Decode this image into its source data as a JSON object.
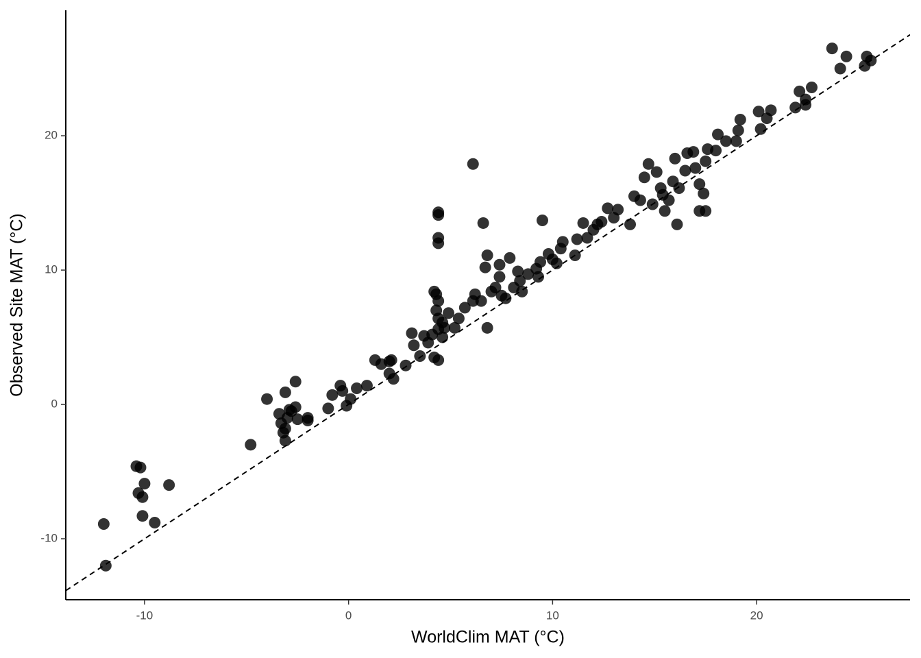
{
  "chart_data": {
    "type": "scatter",
    "x_label": "WorldClim MAT (°C)",
    "y_label": "Observed Site MAT (°C)",
    "xlim": [
      -13.86,
      27.52
    ],
    "ylim": [
      -14.54,
      29.34
    ],
    "xticks": [
      -10,
      0,
      10,
      20
    ],
    "yticks": [
      -10,
      0,
      10,
      20
    ],
    "color": "#000000",
    "reference_line": {
      "slope": 1,
      "intercept": 0,
      "style": "dashed"
    },
    "x": [
      -12.0,
      -11.9,
      -10.4,
      -10.2,
      -10.3,
      -10.0,
      -10.1,
      -10.1,
      -9.5,
      -8.8,
      -4.8,
      -4.0,
      -3.1,
      -2.6,
      -3.4,
      -3.3,
      -3.2,
      -3.1,
      -3.0,
      -2.8,
      -2.6,
      -2.5,
      -2.0,
      -2.0,
      -3.1,
      -2.9,
      -1.0,
      -0.8,
      -0.4,
      -0.3,
      -0.1,
      0.1,
      0.4,
      0.9,
      1.3,
      1.6,
      2.0,
      2.1,
      2.0,
      2.2,
      2.8,
      3.1,
      3.2,
      3.5,
      3.7,
      3.9,
      4.1,
      4.2,
      4.4,
      4.2,
      4.3,
      4.4,
      4.4,
      4.4,
      4.4,
      4.4,
      4.3,
      4.4,
      4.4,
      4.6,
      4.6,
      4.7,
      4.9,
      5.2,
      5.4,
      5.7,
      6.1,
      6.1,
      6.2,
      6.5,
      6.6,
      6.7,
      6.8,
      6.8,
      7.0,
      7.2,
      7.4,
      7.4,
      7.5,
      7.7,
      7.9,
      8.1,
      8.3,
      8.4,
      8.5,
      8.8,
      9.2,
      9.3,
      9.4,
      9.5,
      9.8,
      10.0,
      10.2,
      10.4,
      10.5,
      11.1,
      11.2,
      11.5,
      11.7,
      12.0,
      12.2,
      12.4,
      12.7,
      13.0,
      13.2,
      13.8,
      14.0,
      14.3,
      14.5,
      14.7,
      14.9,
      15.1,
      15.3,
      15.4,
      15.5,
      15.7,
      15.9,
      16.0,
      16.1,
      16.2,
      16.5,
      16.6,
      16.9,
      17.0,
      17.2,
      17.2,
      17.4,
      17.5,
      17.6,
      17.5,
      18.0,
      18.1,
      18.5,
      19.0,
      19.1,
      19.2,
      20.1,
      20.2,
      20.5,
      20.7,
      21.9,
      22.1,
      22.4,
      22.4,
      22.7,
      23.7,
      24.1,
      24.4,
      25.3,
      25.4,
      25.6
    ],
    "values": [
      -8.9,
      -12.0,
      -4.6,
      -4.7,
      -6.6,
      -5.9,
      -6.9,
      -8.3,
      -8.8,
      -6.0,
      -3.0,
      0.4,
      0.9,
      1.7,
      -0.7,
      -1.4,
      -2.1,
      -2.7,
      -1.0,
      -0.5,
      -0.2,
      -1.1,
      -1.0,
      -1.2,
      -1.8,
      -0.4,
      -0.3,
      0.7,
      1.4,
      1.0,
      -0.1,
      0.4,
      1.2,
      1.4,
      3.3,
      3.0,
      3.2,
      3.3,
      2.3,
      1.9,
      2.9,
      5.3,
      4.4,
      3.6,
      5.1,
      4.6,
      5.2,
      3.5,
      3.3,
      8.4,
      8.2,
      14.3,
      14.1,
      12.4,
      12.0,
      7.7,
      7.0,
      6.4,
      5.6,
      5.0,
      6.1,
      5.7,
      6.8,
      5.7,
      6.4,
      7.2,
      17.9,
      7.7,
      8.2,
      7.7,
      13.5,
      10.2,
      11.1,
      5.7,
      8.4,
      8.7,
      9.5,
      10.4,
      8.1,
      7.9,
      10.9,
      8.7,
      9.9,
      9.2,
      8.4,
      9.7,
      10.1,
      9.5,
      10.6,
      13.7,
      11.2,
      10.8,
      10.5,
      11.6,
      12.1,
      11.1,
      12.3,
      13.5,
      12.4,
      13.0,
      13.4,
      13.6,
      14.6,
      13.9,
      14.5,
      13.4,
      15.5,
      15.2,
      16.9,
      17.9,
      14.9,
      17.3,
      16.1,
      15.6,
      14.4,
      15.2,
      16.6,
      18.3,
      13.4,
      16.1,
      17.4,
      18.7,
      18.8,
      17.6,
      16.4,
      14.4,
      15.7,
      18.1,
      19.0,
      14.4,
      18.9,
      20.1,
      19.6,
      19.6,
      20.4,
      21.2,
      21.8,
      20.5,
      21.3,
      21.9,
      22.1,
      23.3,
      22.3,
      22.7,
      23.6,
      26.5,
      25.0,
      25.9,
      25.2,
      25.9,
      25.6
    ]
  }
}
